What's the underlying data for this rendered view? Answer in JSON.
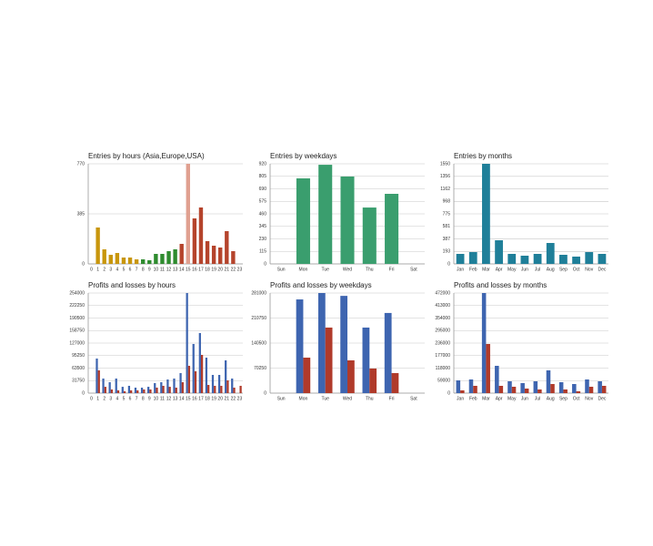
{
  "chart_data": [
    {
      "type": "bar",
      "title": "Entries by hours (Asia,Europe,USA)",
      "categories": [
        "0",
        "1",
        "2",
        "3",
        "4",
        "5",
        "6",
        "7",
        "8",
        "9",
        "10",
        "11",
        "12",
        "13",
        "14",
        "15",
        "16",
        "17",
        "18",
        "19",
        "20",
        "21",
        "22",
        "23"
      ],
      "values": [
        0,
        280,
        112,
        70,
        84,
        49,
        49,
        35,
        35,
        28,
        77,
        77,
        98,
        112,
        154,
        770,
        350,
        434,
        175,
        140,
        126,
        252,
        98,
        0
      ],
      "colors": [
        "#c8960c",
        "#c8960c",
        "#c8960c",
        "#c8960c",
        "#c8960c",
        "#c8960c",
        "#c8960c",
        "#c8960c",
        "#2e8b2e",
        "#2e8b2e",
        "#2e8b2e",
        "#2e8b2e",
        "#2e8b2e",
        "#2e8b2e",
        "#b5442c",
        "#e0a090",
        "#b5442c",
        "#b5442c",
        "#b5442c",
        "#b5442c",
        "#b5442c",
        "#b5442c",
        "#b5442c",
        "#b5442c"
      ],
      "ylim": [
        0,
        770
      ],
      "yticks": [
        0,
        385,
        770
      ],
      "grid": true
    },
    {
      "type": "bar",
      "title": "Entries by weekdays",
      "categories": [
        "Sun",
        "Mon",
        "Tue",
        "Wed",
        "Thu",
        "Fri",
        "Sat"
      ],
      "values": [
        0,
        786,
        911,
        803,
        518,
        644,
        0
      ],
      "color": "#3a9e6e",
      "ylim": [
        0,
        920
      ],
      "yticks": [
        0,
        115,
        230,
        345,
        460,
        575,
        690,
        805,
        920
      ],
      "grid": true
    },
    {
      "type": "bar",
      "title": "Entries by months",
      "categories": [
        "Jan",
        "Feb",
        "Mar",
        "Apr",
        "May",
        "Jun",
        "Jul",
        "Aug",
        "Sep",
        "Oct",
        "Nov",
        "Dec"
      ],
      "values": [
        155,
        183,
        1550,
        366,
        155,
        127,
        155,
        324,
        141,
        113,
        183,
        155
      ],
      "color": "#1f7f99",
      "ylim": [
        0,
        1550
      ],
      "yticks": [
        0,
        193,
        387,
        581,
        775,
        968,
        1162,
        1356,
        1550
      ],
      "grid": true
    },
    {
      "type": "bar",
      "title": "Profits and losses by hours",
      "categories": [
        "0",
        "1",
        "2",
        "3",
        "4",
        "5",
        "6",
        "7",
        "8",
        "9",
        "10",
        "11",
        "12",
        "13",
        "14",
        "15",
        "16",
        "17",
        "18",
        "19",
        "20",
        "21",
        "22",
        "23"
      ],
      "series": [
        {
          "color": "#3e65b0",
          "values": [
            0,
            87700,
            37000,
            27700,
            37000,
            16000,
            18500,
            13900,
            13900,
            16000,
            25400,
            27700,
            34600,
            37000,
            50800,
            254000,
            124700,
            152400,
            90000,
            46200,
            46200,
            83100,
            37000,
            0
          ]
        },
        {
          "color": "#b03a2a",
          "values": [
            0,
            57700,
            16000,
            9200,
            7000,
            4600,
            7000,
            7000,
            9200,
            9200,
            13900,
            18500,
            16000,
            13900,
            27700,
            69300,
            55400,
            97000,
            20800,
            18500,
            18500,
            32300,
            13900,
            18500
          ]
        }
      ],
      "ylim": [
        0,
        254000
      ],
      "yticks": [
        0,
        31750,
        63500,
        95250,
        127000,
        158750,
        190500,
        222250,
        254000
      ],
      "grid": true
    },
    {
      "type": "bar",
      "title": "Profits and losses by weekdays",
      "categories": [
        "Sun",
        "Mon",
        "Tue",
        "Wed",
        "Thu",
        "Fri",
        "Sat"
      ],
      "series": [
        {
          "color": "#3e65b0",
          "values": [
            0,
            263000,
            281000,
            273000,
            184000,
            225000,
            0
          ]
        },
        {
          "color": "#b03a2a",
          "values": [
            0,
            99600,
            184000,
            92000,
            69000,
            56200,
            0
          ]
        }
      ],
      "ylim": [
        0,
        281000
      ],
      "yticks": [
        0,
        70250,
        140500,
        210750,
        281000
      ],
      "grid": true
    },
    {
      "type": "bar",
      "title": "Profits and losses by months",
      "categories": [
        "Jan",
        "Feb",
        "Mar",
        "Apr",
        "May",
        "Jun",
        "Jul",
        "Aug",
        "Sep",
        "Oct",
        "Nov",
        "Dec"
      ],
      "series": [
        {
          "color": "#3e65b0",
          "values": [
            60000,
            64400,
            472000,
            128700,
            55800,
            47200,
            55800,
            107300,
            51500,
            42900,
            64400,
            55800
          ]
        },
        {
          "color": "#b03a2a",
          "values": [
            12900,
            34300,
            231700,
            34300,
            30000,
            21500,
            17200,
            42900,
            17200,
            8600,
            30000,
            34300
          ]
        }
      ],
      "ylim": [
        0,
        472000
      ],
      "yticks": [
        0,
        59000,
        118000,
        177000,
        236000,
        295000,
        354000,
        413000,
        472000
      ],
      "grid": true
    }
  ]
}
